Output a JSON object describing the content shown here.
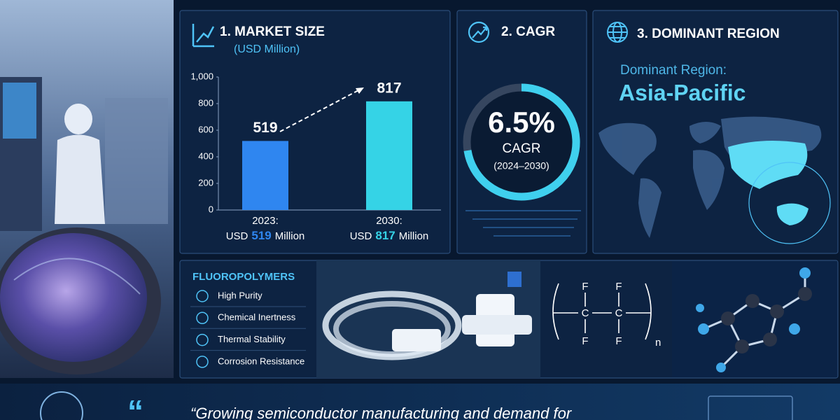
{
  "chart_data": {
    "type": "bar",
    "title": "1. MARKET SIZE",
    "subtitle": "(USD Million)",
    "categories": [
      "2023:",
      "2030:"
    ],
    "values": [
      519,
      817
    ],
    "colors": [
      "#2f86f0",
      "#35d3e6"
    ],
    "caption_prefix": "USD",
    "caption_suffix": "Million",
    "ylim": [
      0,
      1000
    ],
    "yticks": [
      0,
      200,
      400,
      600,
      800,
      {
        "value": 1000,
        "label": "1,000"
      }
    ]
  },
  "cagr": {
    "title": "2. CAGR",
    "value": "6.5%",
    "label": "CAGR",
    "period": "(2024–2030)"
  },
  "region": {
    "title": "3. DOMINANT REGION",
    "label": "Dominant Region:",
    "value": "Asia-Pacific"
  },
  "properties": {
    "title": "FLUOROPOLYMERS",
    "items": [
      "High Purity",
      "Chemical Inertness",
      "Thermal Stability",
      "Corrosion Resistance"
    ]
  },
  "formula": {
    "top": [
      "F",
      "F"
    ],
    "middle": [
      "C",
      "C"
    ],
    "bottom": [
      "F",
      "F"
    ],
    "subscript": "n"
  },
  "quote": {
    "mark": "“",
    "text": "“Growing semiconductor manufacturing and demand for"
  }
}
